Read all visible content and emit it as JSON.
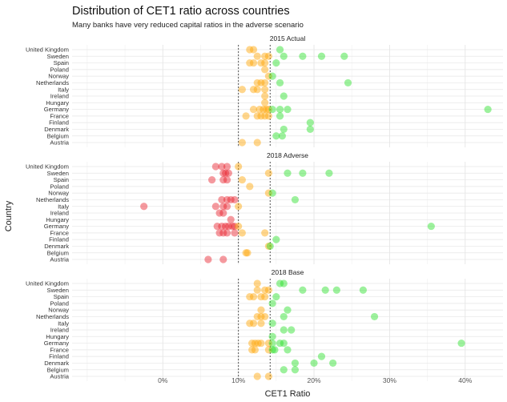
{
  "chart_data": {
    "type": "scatter",
    "title": "Distribution of CET1 ratio across countries",
    "subtitle": "Many banks have very reduced capital ratios in the adverse scenario",
    "xlabel": "CET1 Ratio",
    "ylabel": "Country",
    "xlim": [
      -0.12,
      0.45
    ],
    "x_ticks": [
      0,
      0.1,
      0.2,
      0.3,
      0.4
    ],
    "x_tick_labels": [
      "0%",
      "10%",
      "20%",
      "30%",
      "40%"
    ],
    "reference_lines": [
      0.1,
      0.142
    ],
    "countries": [
      "United Kingdom",
      "Sweden",
      "Spain",
      "Poland",
      "Norway",
      "Netherlands",
      "Italy",
      "Ireland",
      "Hungary",
      "Germany",
      "France",
      "Finland",
      "Denmark",
      "Belgium",
      "Austria"
    ],
    "colors": {
      "low": "#e8202a",
      "mid": "#ffa500",
      "high": "#26e026"
    },
    "grid": true,
    "panels": [
      {
        "name": "2015 Actual",
        "points": [
          {
            "country": "United Kingdom",
            "values": [
              0.115,
              0.12,
              0.155
            ]
          },
          {
            "country": "Sweden",
            "values": [
              0.125,
              0.135,
              0.14,
              0.16,
              0.185,
              0.21,
              0.24
            ]
          },
          {
            "country": "Spain",
            "values": [
              0.115,
              0.12,
              0.13,
              0.135,
              0.15
            ]
          },
          {
            "country": "Poland",
            "values": [
              0.135
            ]
          },
          {
            "country": "Norway",
            "values": [
              0.14,
              0.145
            ]
          },
          {
            "country": "Netherlands",
            "values": [
              0.125,
              0.13,
              0.135,
              0.155,
              0.245
            ]
          },
          {
            "country": "Italy",
            "values": [
              0.105,
              0.12,
              0.125,
              0.135
            ]
          },
          {
            "country": "Ireland",
            "values": [
              0.135,
              0.16
            ]
          },
          {
            "country": "Hungary",
            "values": [
              0.135
            ]
          },
          {
            "country": "Germany",
            "values": [
              0.12,
              0.128,
              0.133,
              0.137,
              0.14,
              0.145,
              0.155,
              0.165,
              0.43
            ]
          },
          {
            "country": "France",
            "values": [
              0.11,
              0.125,
              0.13,
              0.135,
              0.14,
              0.155
            ]
          },
          {
            "country": "Finland",
            "values": [
              0.195
            ]
          },
          {
            "country": "Denmark",
            "values": [
              0.16,
              0.195
            ]
          },
          {
            "country": "Belgium",
            "values": [
              0.15,
              0.158
            ]
          },
          {
            "country": "Austria",
            "values": [
              0.105,
              0.125
            ]
          }
        ]
      },
      {
        "name": "2018 Adverse",
        "points": [
          {
            "country": "United Kingdom",
            "values": [
              0.07,
              0.078,
              0.085,
              0.1
            ]
          },
          {
            "country": "Sweden",
            "values": [
              0.08,
              0.083,
              0.087,
              0.14,
              0.165,
              0.185,
              0.22
            ]
          },
          {
            "country": "Spain",
            "values": [
              0.065,
              0.08,
              0.085,
              0.105
            ]
          },
          {
            "country": "Poland",
            "values": [
              0.115
            ]
          },
          {
            "country": "Norway",
            "values": [
              0.14,
              0.145
            ]
          },
          {
            "country": "Netherlands",
            "values": [
              0.078,
              0.085,
              0.09,
              0.095,
              0.175
            ]
          },
          {
            "country": "Italy",
            "values": [
              -0.025,
              0.07,
              0.08,
              0.085,
              0.1
            ]
          },
          {
            "country": "Ireland",
            "values": [
              0.075,
              0.08
            ]
          },
          {
            "country": "Hungary",
            "values": [
              0.09
            ]
          },
          {
            "country": "Germany",
            "values": [
              0.072,
              0.078,
              0.083,
              0.087,
              0.092,
              0.095,
              0.1,
              0.355
            ]
          },
          {
            "country": "France",
            "values": [
              0.075,
              0.08,
              0.085,
              0.095,
              0.105,
              0.135
            ]
          },
          {
            "country": "Finland",
            "values": [
              0.15
            ]
          },
          {
            "country": "Denmark",
            "values": [
              0.14,
              0.142
            ]
          },
          {
            "country": "Belgium",
            "values": [
              0.11,
              0.112
            ]
          },
          {
            "country": "Austria",
            "values": [
              0.06,
              0.08
            ]
          }
        ]
      },
      {
        "name": "2018 Base",
        "points": [
          {
            "country": "United Kingdom",
            "values": [
              0.125,
              0.155,
              0.16
            ]
          },
          {
            "country": "Sweden",
            "values": [
              0.125,
              0.135,
              0.14,
              0.185,
              0.215,
              0.23,
              0.265
            ]
          },
          {
            "country": "Spain",
            "values": [
              0.115,
              0.12,
              0.13,
              0.135,
              0.15
            ]
          },
          {
            "country": "Poland",
            "values": [
              0.145
            ]
          },
          {
            "country": "Norway",
            "values": [
              0.13,
              0.165
            ]
          },
          {
            "country": "Netherlands",
            "values": [
              0.125,
              0.13,
              0.135,
              0.16,
              0.28
            ]
          },
          {
            "country": "Italy",
            "values": [
              0.115,
              0.12,
              0.13,
              0.145
            ]
          },
          {
            "country": "Ireland",
            "values": [
              0.16,
              0.17
            ]
          },
          {
            "country": "Hungary",
            "values": [
              0.145
            ]
          },
          {
            "country": "Germany",
            "values": [
              0.118,
              0.122,
              0.126,
              0.13,
              0.14,
              0.145,
              0.155,
              0.16,
              0.395
            ]
          },
          {
            "country": "France",
            "values": [
              0.118,
              0.122,
              0.14,
              0.145,
              0.148,
              0.165
            ]
          },
          {
            "country": "Finland",
            "values": [
              0.21
            ]
          },
          {
            "country": "Denmark",
            "values": [
              0.175,
              0.2,
              0.225
            ]
          },
          {
            "country": "Belgium",
            "values": [
              0.16,
              0.175
            ]
          },
          {
            "country": "Austria",
            "values": [
              0.125,
              0.14
            ]
          }
        ]
      }
    ]
  }
}
